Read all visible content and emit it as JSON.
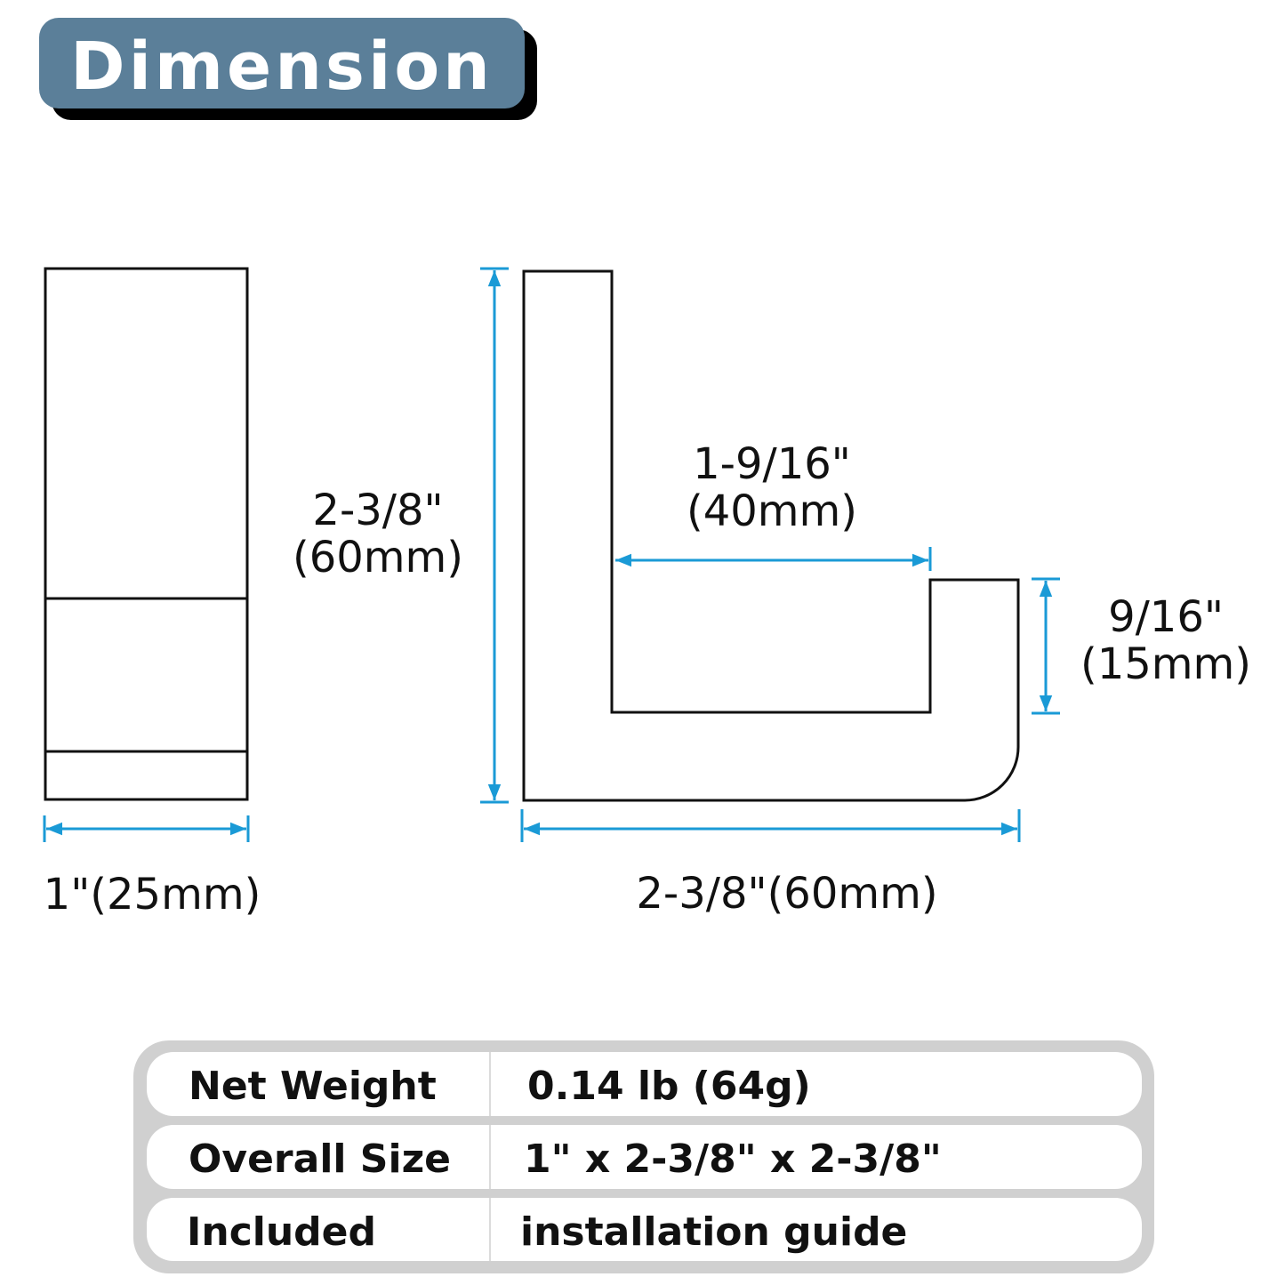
{
  "title": "Dimension",
  "colors": {
    "badge": "#5b7f99",
    "dimension_line": "#1a9ad6",
    "table_frame": "#d0d0d0"
  },
  "side_view": {
    "width_label": "1\"(25mm)"
  },
  "front_view": {
    "height_label": [
      "2-3/8\"",
      "(60mm)"
    ],
    "inner_width_label": [
      "1-9/16\"",
      "(40mm)"
    ],
    "tip_height_label": [
      "9/16\"",
      "(15mm)"
    ],
    "width_label": "2-3/8\"(60mm)"
  },
  "specs": [
    {
      "label": "Net Weight",
      "value": "0.14 lb (64g)"
    },
    {
      "label": "Overall Size",
      "value": "1\" x 2-3/8\" x 2-3/8\""
    },
    {
      "label": "Included",
      "value": "installation guide"
    }
  ]
}
